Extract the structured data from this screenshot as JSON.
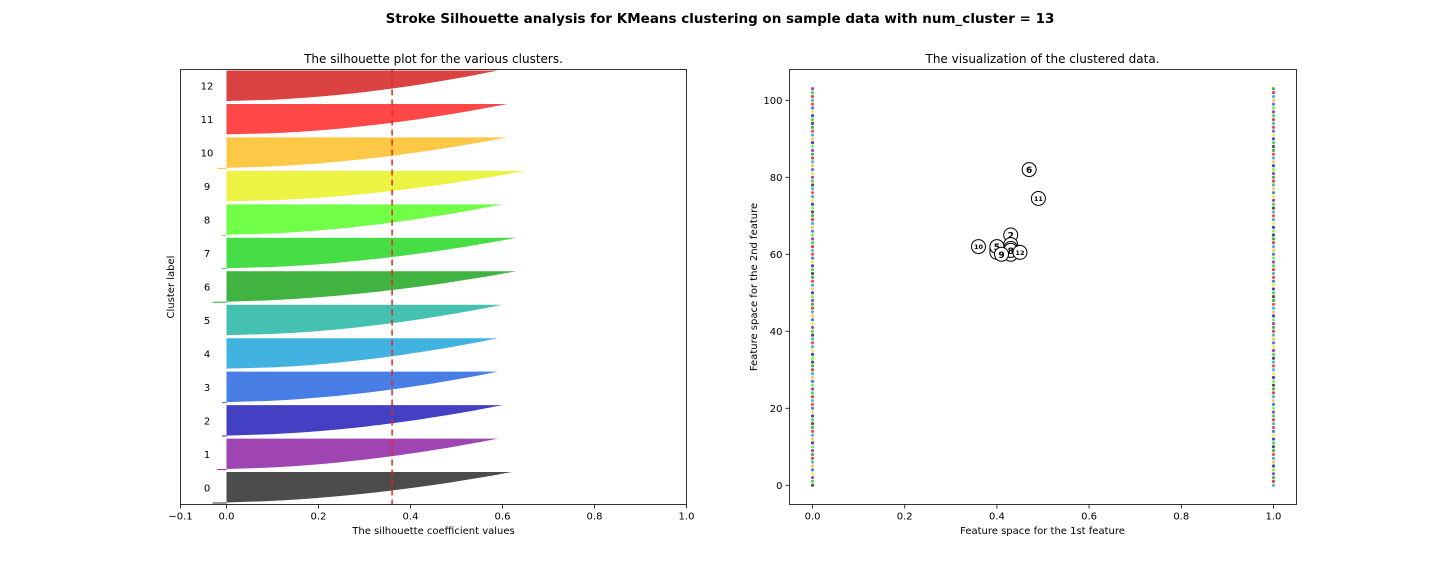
{
  "suptitle": "Stroke Silhouette analysis for KMeans clustering on sample data with num_cluster = 13",
  "chart_data": [
    {
      "type": "area",
      "title": "The silhouette plot for the various clusters.",
      "xlabel": "The silhouette coefficient values",
      "ylabel": "Cluster label",
      "xlim": [
        -0.1,
        1.0
      ],
      "xticks": [
        -0.1,
        0.0,
        0.2,
        0.4,
        0.6,
        0.8,
        1.0
      ],
      "xtick_labels": [
        "−0.1",
        "0.0",
        "0.2",
        "0.4",
        "0.6",
        "0.8",
        "1.0"
      ],
      "mean_silhouette": 0.36,
      "clusters": [
        {
          "label": "0",
          "color": "#333333",
          "min": -0.03,
          "max": 0.62
        },
        {
          "label": "1",
          "color": "#912aa8",
          "min": -0.02,
          "max": 0.59
        },
        {
          "label": "2",
          "color": "#2a25bb",
          "min": -0.01,
          "max": 0.6
        },
        {
          "label": "3",
          "color": "#2d6be0",
          "min": -0.01,
          "max": 0.59
        },
        {
          "label": "4",
          "color": "#28a8dc",
          "min": 0.0,
          "max": 0.59
        },
        {
          "label": "5",
          "color": "#2ab8a5",
          "min": 0.0,
          "max": 0.6
        },
        {
          "label": "6",
          "color": "#25a825",
          "min": -0.03,
          "max": 0.63
        },
        {
          "label": "7",
          "color": "#2ed82e",
          "min": -0.01,
          "max": 0.63
        },
        {
          "label": "8",
          "color": "#5cfe2e",
          "min": -0.01,
          "max": 0.6
        },
        {
          "label": "9",
          "color": "#ebf128",
          "min": 0.0,
          "max": 0.65
        },
        {
          "label": "10",
          "color": "#fec02e",
          "min": -0.02,
          "max": 0.61
        },
        {
          "label": "11",
          "color": "#fe2e2e",
          "min": 0.0,
          "max": 0.61
        },
        {
          "label": "12",
          "color": "#d62828",
          "min": 0.0,
          "max": 0.59
        }
      ]
    },
    {
      "type": "scatter",
      "title": "The visualization of the clustered data.",
      "xlabel": "Feature space for the 1st feature",
      "ylabel": "Feature space for the 2nd feature",
      "xlim": [
        -0.05,
        1.05
      ],
      "ylim": [
        -5,
        108
      ],
      "xticks": [
        0.0,
        0.2,
        0.4,
        0.6,
        0.8,
        1.0
      ],
      "xtick_labels": [
        "0.0",
        "0.2",
        "0.4",
        "0.6",
        "0.8",
        "1.0"
      ],
      "yticks": [
        0,
        20,
        40,
        60,
        80,
        100
      ],
      "ytick_labels": [
        "0",
        "20",
        "40",
        "60",
        "80",
        "100"
      ],
      "points_x": [
        0,
        1
      ],
      "points_y_range": [
        0,
        103
      ],
      "centers": [
        {
          "label": "0",
          "x": 0.4,
          "y": 61.5
        },
        {
          "label": "1",
          "x": 0.4,
          "y": 60.5
        },
        {
          "label": "2",
          "x": 0.43,
          "y": 65.0
        },
        {
          "label": "3",
          "x": 0.43,
          "y": 62.5
        },
        {
          "label": "4",
          "x": 0.43,
          "y": 61.5
        },
        {
          "label": "5",
          "x": 0.4,
          "y": 62.0
        },
        {
          "label": "6",
          "x": 0.47,
          "y": 82.0
        },
        {
          "label": "7",
          "x": 0.43,
          "y": 60.0
        },
        {
          "label": "8",
          "x": 0.43,
          "y": 61.0
        },
        {
          "label": "9",
          "x": 0.41,
          "y": 60.0
        },
        {
          "label": "10",
          "x": 0.36,
          "y": 62.0
        },
        {
          "label": "11",
          "x": 0.49,
          "y": 74.5
        },
        {
          "label": "12",
          "x": 0.45,
          "y": 60.5
        }
      ]
    }
  ]
}
